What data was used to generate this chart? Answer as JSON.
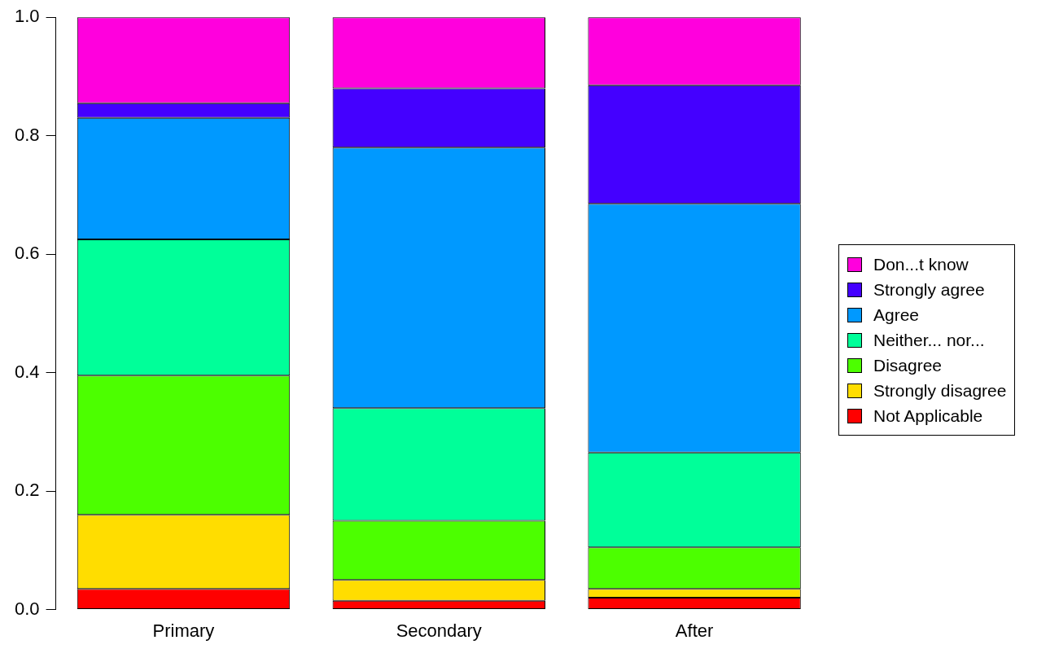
{
  "chart_data": {
    "type": "bar",
    "stacked": true,
    "categories": [
      "Primary",
      "Secondary",
      "After"
    ],
    "series": [
      {
        "name": "Not Applicable",
        "color": "#ff0000",
        "values": [
          0.035,
          0.015,
          0.02
        ]
      },
      {
        "name": "Strongly disagree",
        "color": "#ffdd00",
        "values": [
          0.125,
          0.035,
          0.015
        ]
      },
      {
        "name": "Disagree",
        "color": "#4cff00",
        "values": [
          0.235,
          0.1,
          0.07
        ]
      },
      {
        "name": "Neither... nor...",
        "color": "#00ff99",
        "values": [
          0.23,
          0.19,
          0.16
        ]
      },
      {
        "name": "Agree",
        "color": "#0099ff",
        "values": [
          0.205,
          0.44,
          0.42
        ]
      },
      {
        "name": "Strongly agree",
        "color": "#4400ff",
        "values": [
          0.025,
          0.1,
          0.2
        ]
      },
      {
        "name": "Don...t know",
        "color": "#ff00dd",
        "values": [
          0.145,
          0.12,
          0.115
        ]
      }
    ],
    "ylim": [
      0,
      1
    ],
    "yticks": [
      {
        "value": 0,
        "label": "0.0"
      },
      {
        "value": 0.2,
        "label": "0.2"
      },
      {
        "value": 0.4,
        "label": "0.4"
      },
      {
        "value": 0.6,
        "label": "0.6"
      },
      {
        "value": 0.8,
        "label": "0.8"
      },
      {
        "value": 1,
        "label": "1.0"
      }
    ],
    "grid": false,
    "legend": "right"
  }
}
